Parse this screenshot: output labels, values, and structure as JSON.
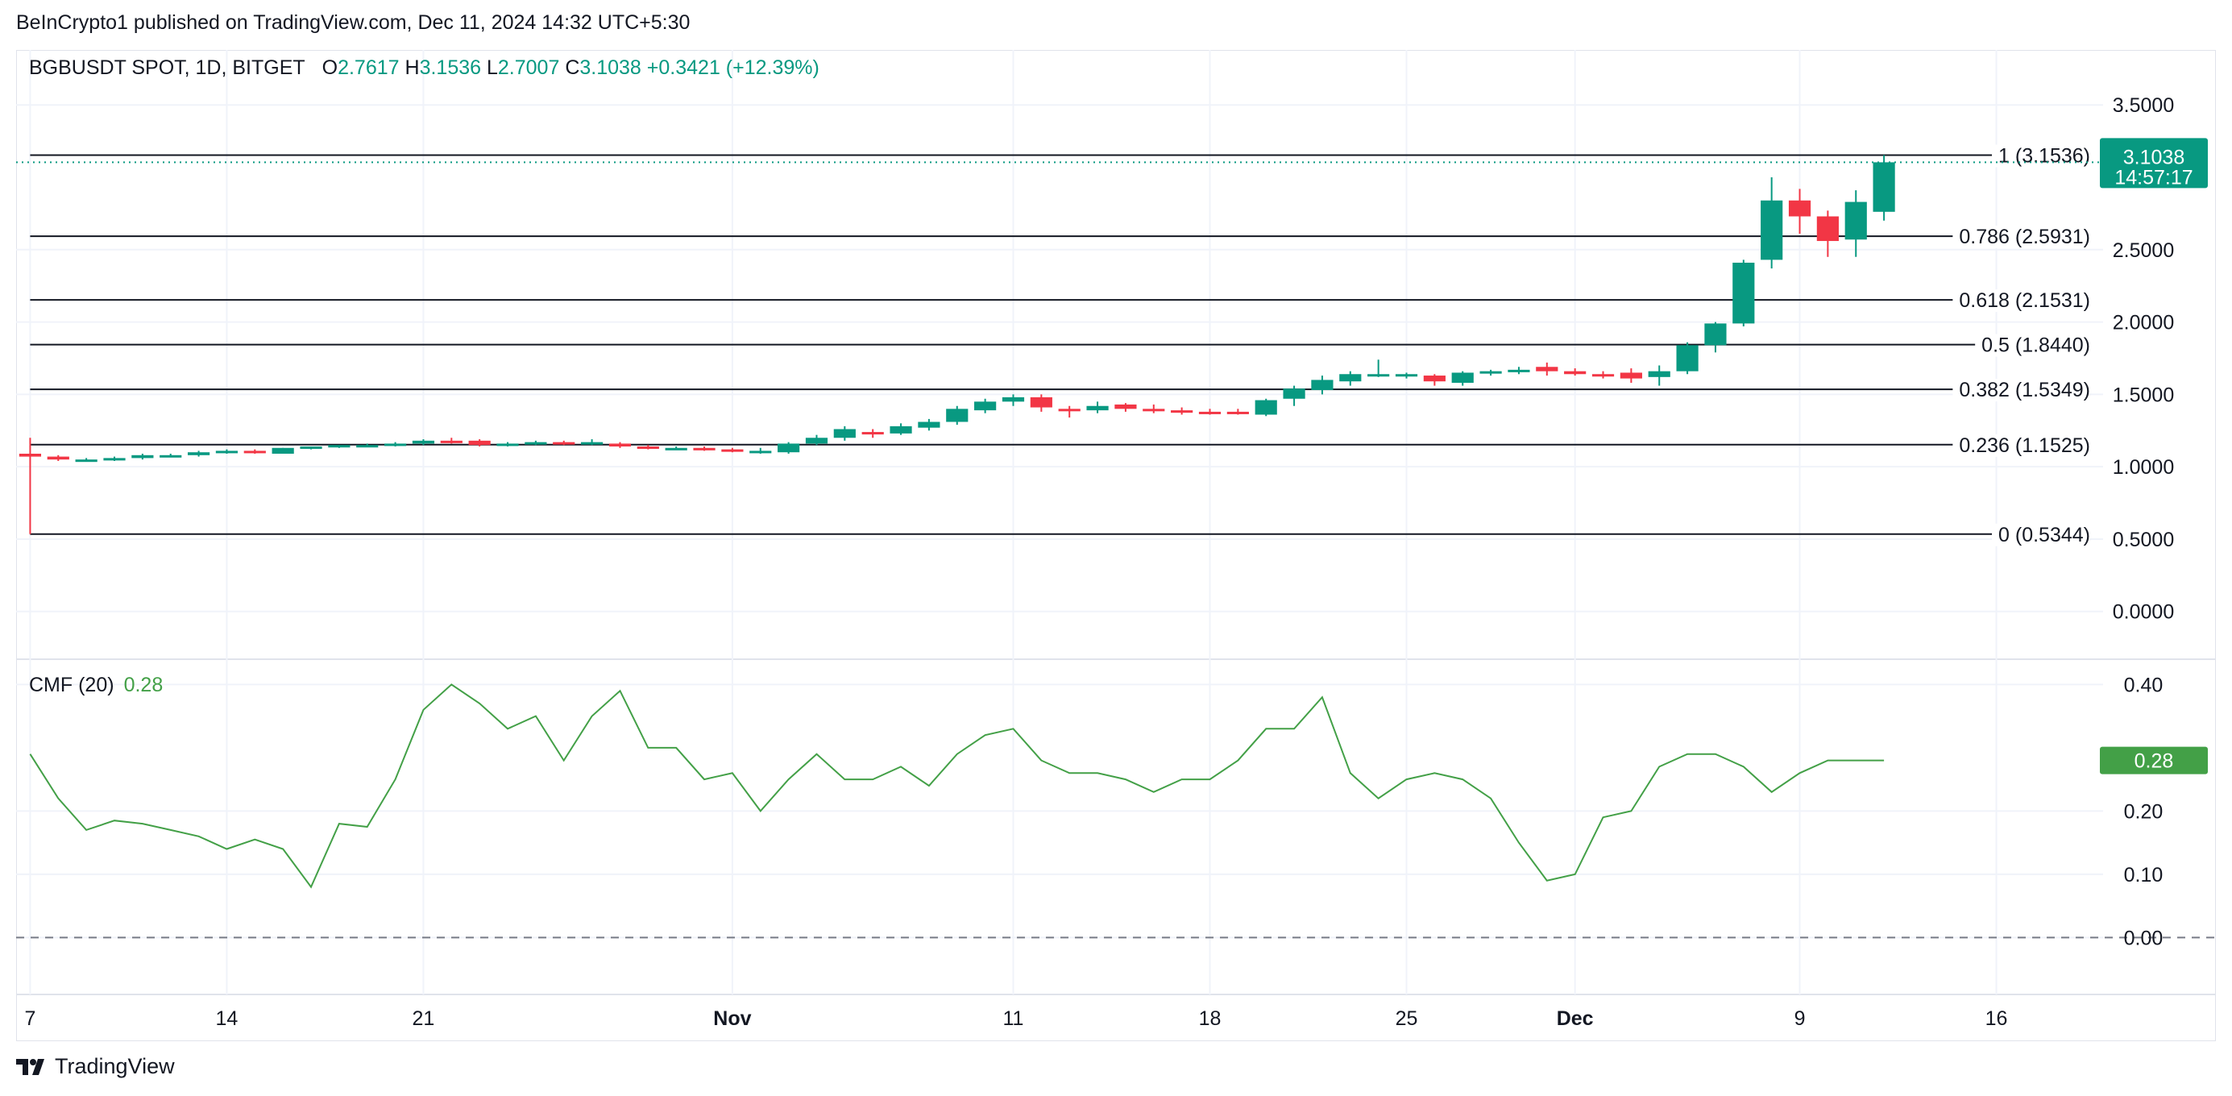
{
  "header": {
    "published": "BeInCrypto1 published on TradingView.com, Dec 11, 2024 14:32 UTC+5:30"
  },
  "legend": {
    "symbol": "BGBUSDT SPOT, 1D, BITGET",
    "o_label": "O",
    "o_value": "2.7617",
    "h_label": "H",
    "h_value": "3.1536",
    "l_label": "L",
    "l_value": "2.7007",
    "c_label": "C",
    "c_value": "3.1038",
    "change": "+0.3421 (+12.39%)"
  },
  "price_badge": {
    "price": "3.1038",
    "countdown": "14:57:17"
  },
  "cmf_legend": {
    "name": "CMF (20)",
    "value": "0.28"
  },
  "cmf_badge": "0.28",
  "footer": {
    "brand": "TradingView"
  },
  "colors": {
    "up": "#089981",
    "down": "#f23645",
    "cmf": "#43a047",
    "fib": "#131722"
  },
  "chart_data": [
    {
      "type": "candlestick",
      "title": "BGBUSDT SPOT, 1D, BITGET",
      "y_ticks": [
        "3.5000",
        "2.5000",
        "2.0000",
        "1.5000",
        "1.0000",
        "0.5000",
        "0.0000"
      ],
      "y_tick_values": [
        3.5,
        2.5,
        2.0,
        1.5,
        1.0,
        0.5,
        0.0
      ],
      "ylim": [
        -0.33,
        3.88
      ],
      "x_tick_labels": [
        {
          "label": "7",
          "day": 0
        },
        {
          "label": "14",
          "day": 7
        },
        {
          "label": "21",
          "day": 14
        },
        {
          "label": "Nov",
          "day": 25
        },
        {
          "label": "11",
          "day": 35
        },
        {
          "label": "18",
          "day": 42
        },
        {
          "label": "25",
          "day": 49
        },
        {
          "label": "Dec",
          "day": 55
        },
        {
          "label": "9",
          "day": 63
        },
        {
          "label": "16",
          "day": 70
        }
      ],
      "xlim": [
        -0.5,
        73.8
      ],
      "fibonacci": [
        {
          "label": "1 (3.1536)",
          "value": 3.1536
        },
        {
          "label": "0.786 (2.5931)",
          "value": 2.5931
        },
        {
          "label": "0.618 (2.1531)",
          "value": 2.1531
        },
        {
          "label": "0.5 (1.8440)",
          "value": 1.844
        },
        {
          "label": "0.382 (1.5349)",
          "value": 1.5349
        },
        {
          "label": "0.236 (1.1525)",
          "value": 1.1525
        },
        {
          "label": "0 (0.5344)",
          "value": 0.5344
        }
      ],
      "last_price": 3.1038,
      "candles": [
        {
          "day": 0,
          "o": 1.09,
          "h": 1.2,
          "l": 0.5344,
          "c": 1.07
        },
        {
          "day": 1,
          "o": 1.07,
          "h": 1.08,
          "l": 1.04,
          "c": 1.05
        },
        {
          "day": 2,
          "o": 1.05,
          "h": 1.06,
          "l": 1.04,
          "c": 1.05
        },
        {
          "day": 3,
          "o": 1.05,
          "h": 1.07,
          "l": 1.04,
          "c": 1.06
        },
        {
          "day": 4,
          "o": 1.06,
          "h": 1.09,
          "l": 1.05,
          "c": 1.08
        },
        {
          "day": 5,
          "o": 1.08,
          "h": 1.09,
          "l": 1.07,
          "c": 1.08
        },
        {
          "day": 6,
          "o": 1.08,
          "h": 1.11,
          "l": 1.07,
          "c": 1.1
        },
        {
          "day": 7,
          "o": 1.1,
          "h": 1.12,
          "l": 1.09,
          "c": 1.11
        },
        {
          "day": 8,
          "o": 1.11,
          "h": 1.12,
          "l": 1.09,
          "c": 1.1
        },
        {
          "day": 9,
          "o": 1.09,
          "h": 1.13,
          "l": 1.09,
          "c": 1.13
        },
        {
          "day": 10,
          "o": 1.13,
          "h": 1.14,
          "l": 1.12,
          "c": 1.14
        },
        {
          "day": 11,
          "o": 1.14,
          "h": 1.15,
          "l": 1.13,
          "c": 1.15
        },
        {
          "day": 12,
          "o": 1.15,
          "h": 1.16,
          "l": 1.14,
          "c": 1.15
        },
        {
          "day": 13,
          "o": 1.15,
          "h": 1.17,
          "l": 1.14,
          "c": 1.16
        },
        {
          "day": 14,
          "o": 1.16,
          "h": 1.19,
          "l": 1.15,
          "c": 1.18
        },
        {
          "day": 15,
          "o": 1.18,
          "h": 1.2,
          "l": 1.16,
          "c": 1.17
        },
        {
          "day": 16,
          "o": 1.18,
          "h": 1.19,
          "l": 1.14,
          "c": 1.15
        },
        {
          "day": 17,
          "o": 1.15,
          "h": 1.17,
          "l": 1.14,
          "c": 1.16
        },
        {
          "day": 18,
          "o": 1.16,
          "h": 1.18,
          "l": 1.15,
          "c": 1.17
        },
        {
          "day": 19,
          "o": 1.17,
          "h": 1.18,
          "l": 1.15,
          "c": 1.16
        },
        {
          "day": 20,
          "o": 1.16,
          "h": 1.19,
          "l": 1.15,
          "c": 1.17
        },
        {
          "day": 21,
          "o": 1.16,
          "h": 1.17,
          "l": 1.13,
          "c": 1.14
        },
        {
          "day": 22,
          "o": 1.14,
          "h": 1.15,
          "l": 1.12,
          "c": 1.13
        },
        {
          "day": 23,
          "o": 1.13,
          "h": 1.14,
          "l": 1.12,
          "c": 1.13
        },
        {
          "day": 24,
          "o": 1.13,
          "h": 1.14,
          "l": 1.11,
          "c": 1.12
        },
        {
          "day": 25,
          "o": 1.12,
          "h": 1.13,
          "l": 1.1,
          "c": 1.11
        },
        {
          "day": 26,
          "o": 1.1,
          "h": 1.13,
          "l": 1.09,
          "c": 1.11
        },
        {
          "day": 27,
          "o": 1.1,
          "h": 1.17,
          "l": 1.09,
          "c": 1.16
        },
        {
          "day": 28,
          "o": 1.16,
          "h": 1.22,
          "l": 1.15,
          "c": 1.2
        },
        {
          "day": 29,
          "o": 1.2,
          "h": 1.28,
          "l": 1.18,
          "c": 1.26
        },
        {
          "day": 30,
          "o": 1.24,
          "h": 1.26,
          "l": 1.2,
          "c": 1.23
        },
        {
          "day": 31,
          "o": 1.23,
          "h": 1.3,
          "l": 1.22,
          "c": 1.28
        },
        {
          "day": 32,
          "o": 1.27,
          "h": 1.33,
          "l": 1.25,
          "c": 1.31
        },
        {
          "day": 33,
          "o": 1.31,
          "h": 1.42,
          "l": 1.29,
          "c": 1.4
        },
        {
          "day": 34,
          "o": 1.39,
          "h": 1.47,
          "l": 1.37,
          "c": 1.45
        },
        {
          "day": 35,
          "o": 1.45,
          "h": 1.5,
          "l": 1.42,
          "c": 1.48
        },
        {
          "day": 36,
          "o": 1.48,
          "h": 1.5,
          "l": 1.38,
          "c": 1.41
        },
        {
          "day": 37,
          "o": 1.4,
          "h": 1.42,
          "l": 1.34,
          "c": 1.39
        },
        {
          "day": 38,
          "o": 1.39,
          "h": 1.45,
          "l": 1.37,
          "c": 1.42
        },
        {
          "day": 39,
          "o": 1.43,
          "h": 1.44,
          "l": 1.38,
          "c": 1.4
        },
        {
          "day": 40,
          "o": 1.4,
          "h": 1.43,
          "l": 1.37,
          "c": 1.39
        },
        {
          "day": 41,
          "o": 1.39,
          "h": 1.41,
          "l": 1.36,
          "c": 1.38
        },
        {
          "day": 42,
          "o": 1.38,
          "h": 1.4,
          "l": 1.36,
          "c": 1.37
        },
        {
          "day": 43,
          "o": 1.38,
          "h": 1.4,
          "l": 1.36,
          "c": 1.37
        },
        {
          "day": 44,
          "o": 1.36,
          "h": 1.47,
          "l": 1.35,
          "c": 1.46
        },
        {
          "day": 45,
          "o": 1.47,
          "h": 1.56,
          "l": 1.42,
          "c": 1.54
        },
        {
          "day": 46,
          "o": 1.53,
          "h": 1.63,
          "l": 1.5,
          "c": 1.6
        },
        {
          "day": 47,
          "o": 1.59,
          "h": 1.66,
          "l": 1.56,
          "c": 1.64
        },
        {
          "day": 48,
          "o": 1.64,
          "h": 1.74,
          "l": 1.62,
          "c": 1.64
        },
        {
          "day": 49,
          "o": 1.63,
          "h": 1.65,
          "l": 1.61,
          "c": 1.64
        },
        {
          "day": 50,
          "o": 1.63,
          "h": 1.64,
          "l": 1.56,
          "c": 1.59
        },
        {
          "day": 51,
          "o": 1.58,
          "h": 1.66,
          "l": 1.56,
          "c": 1.65
        },
        {
          "day": 52,
          "o": 1.65,
          "h": 1.67,
          "l": 1.63,
          "c": 1.66
        },
        {
          "day": 53,
          "o": 1.66,
          "h": 1.69,
          "l": 1.64,
          "c": 1.67
        },
        {
          "day": 54,
          "o": 1.69,
          "h": 1.72,
          "l": 1.63,
          "c": 1.66
        },
        {
          "day": 55,
          "o": 1.66,
          "h": 1.68,
          "l": 1.63,
          "c": 1.64
        },
        {
          "day": 56,
          "o": 1.64,
          "h": 1.66,
          "l": 1.61,
          "c": 1.63
        },
        {
          "day": 57,
          "o": 1.65,
          "h": 1.68,
          "l": 1.58,
          "c": 1.61
        },
        {
          "day": 58,
          "o": 1.62,
          "h": 1.7,
          "l": 1.56,
          "c": 1.66
        },
        {
          "day": 59,
          "o": 1.66,
          "h": 1.86,
          "l": 1.64,
          "c": 1.84
        },
        {
          "day": 60,
          "o": 1.84,
          "h": 2.0,
          "l": 1.79,
          "c": 1.99
        },
        {
          "day": 61,
          "o": 1.99,
          "h": 2.43,
          "l": 1.97,
          "c": 2.41
        },
        {
          "day": 62,
          "o": 2.43,
          "h": 3.0,
          "l": 2.37,
          "c": 2.84
        },
        {
          "day": 63,
          "o": 2.84,
          "h": 2.92,
          "l": 2.61,
          "c": 2.73
        },
        {
          "day": 64,
          "o": 2.73,
          "h": 2.77,
          "l": 2.45,
          "c": 2.56
        },
        {
          "day": 65,
          "o": 2.57,
          "h": 2.91,
          "l": 2.45,
          "c": 2.83
        },
        {
          "day": 66,
          "o": 2.7617,
          "h": 3.1536,
          "l": 2.7007,
          "c": 3.1038
        }
      ]
    },
    {
      "type": "line",
      "title": "CMF (20)",
      "y_ticks": [
        "0.40",
        "0.20",
        "0.10",
        "0.00"
      ],
      "y_tick_values": [
        0.4,
        0.2,
        0.1,
        0.0
      ],
      "ylim": [
        -0.09,
        0.44
      ],
      "zero_line": 0.0,
      "series": [
        {
          "name": "CMF (20)",
          "x": [
            0,
            1,
            2,
            3,
            4,
            5,
            6,
            7,
            8,
            9,
            10,
            11,
            12,
            13,
            14,
            15,
            16,
            17,
            18,
            19,
            20,
            21,
            22,
            23,
            24,
            25,
            26,
            27,
            28,
            29,
            30,
            31,
            32,
            33,
            34,
            35,
            36,
            37,
            38,
            39,
            40,
            41,
            42,
            43,
            44,
            45,
            46,
            47,
            48,
            49,
            50,
            51,
            52,
            53,
            54,
            55,
            56,
            57,
            58,
            59,
            60,
            61,
            62,
            63,
            64,
            65,
            66
          ],
          "values": [
            0.29,
            0.22,
            0.17,
            0.185,
            0.18,
            0.17,
            0.16,
            0.14,
            0.155,
            0.14,
            0.08,
            0.18,
            0.175,
            0.25,
            0.36,
            0.4,
            0.37,
            0.33,
            0.35,
            0.28,
            0.35,
            0.39,
            0.3,
            0.3,
            0.25,
            0.26,
            0.2,
            0.25,
            0.29,
            0.25,
            0.25,
            0.27,
            0.24,
            0.29,
            0.32,
            0.33,
            0.28,
            0.26,
            0.26,
            0.25,
            0.23,
            0.25,
            0.25,
            0.28,
            0.33,
            0.33,
            0.38,
            0.26,
            0.22,
            0.25,
            0.26,
            0.25,
            0.22,
            0.15,
            0.09,
            0.1,
            0.19,
            0.2,
            0.27,
            0.29,
            0.29,
            0.27,
            0.23,
            0.26,
            0.28,
            0.28,
            0.28
          ]
        }
      ]
    }
  ]
}
